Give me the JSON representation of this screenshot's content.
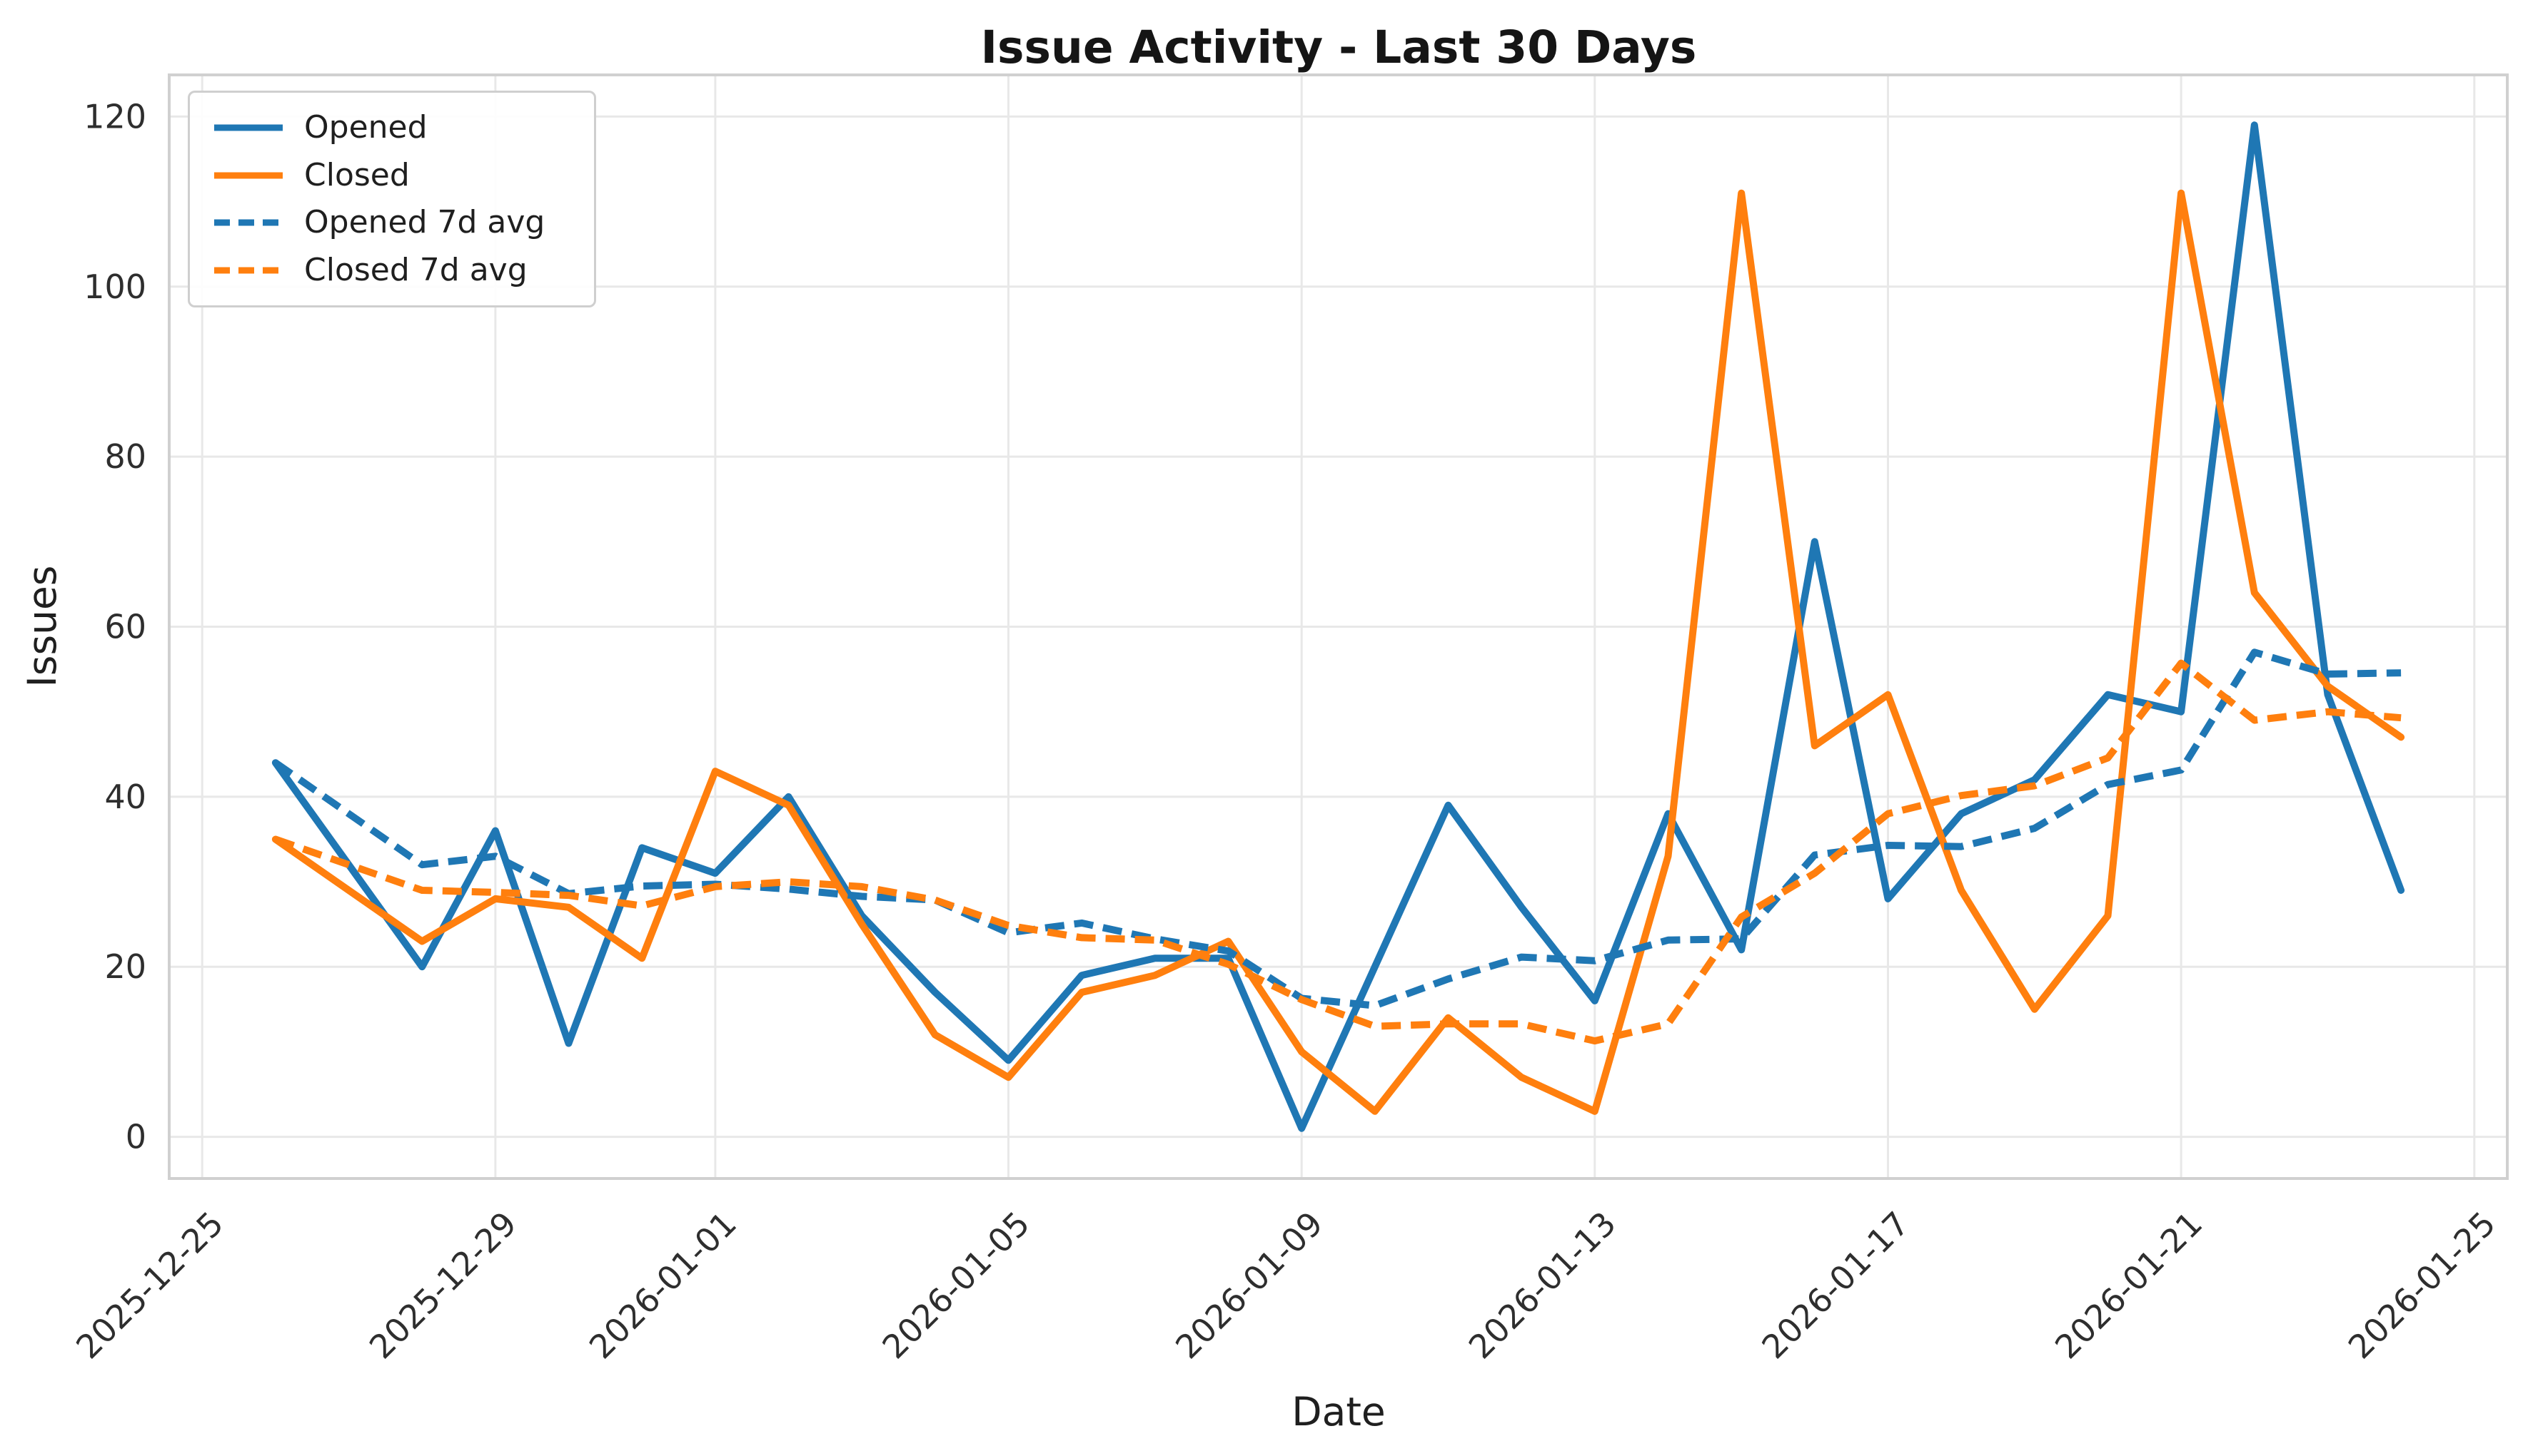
{
  "figure": {
    "background": "#ffffff",
    "grid_color": "#e8e8e8",
    "spine_color": "#d0d0d0",
    "tick_text_color": "#2e2e2e",
    "text_color": "#1f1f1f"
  },
  "chart_data": {
    "type": "line",
    "title": "Issue Activity - Last 30 Days",
    "xlabel": "Date",
    "ylabel": "Issues",
    "grid": true,
    "legend_position": "upper left",
    "ylim": [
      -4.9,
      124.9
    ],
    "xlim_days": [
      -0.45,
      31.45
    ],
    "x_epoch_date": "2025-12-25",
    "x_dates": [
      "2025-12-26",
      "2025-12-27",
      "2025-12-28",
      "2025-12-29",
      "2025-12-30",
      "2025-12-31",
      "2026-01-01",
      "2026-01-02",
      "2026-01-03",
      "2026-01-04",
      "2026-01-05",
      "2026-01-06",
      "2026-01-07",
      "2026-01-08",
      "2026-01-09",
      "2026-01-10",
      "2026-01-11",
      "2026-01-12",
      "2026-01-13",
      "2026-01-14",
      "2026-01-15",
      "2026-01-16",
      "2026-01-17",
      "2026-01-18",
      "2026-01-19",
      "2026-01-20",
      "2026-01-21",
      "2026-01-22",
      "2026-01-23",
      "2026-01-24"
    ],
    "x_tick_offsets": [
      0,
      4,
      7,
      11,
      15,
      19,
      23,
      27,
      31
    ],
    "x_tick_labels": [
      "2025-12-25",
      "2025-12-29",
      "2026-01-01",
      "2026-01-05",
      "2026-01-09",
      "2026-01-13",
      "2026-01-17",
      "2026-01-21",
      "2026-01-25"
    ],
    "y_ticks": [
      0,
      20,
      40,
      60,
      80,
      100,
      120
    ],
    "series": [
      {
        "name": "Opened",
        "color": "#1f77b4",
        "style": "solid",
        "values": [
          44,
          32,
          20,
          36,
          11,
          34,
          31,
          40,
          26,
          17,
          9,
          19,
          21,
          21,
          1,
          20,
          39,
          27,
          16,
          38,
          22,
          70,
          28,
          38,
          42,
          52,
          50,
          119,
          52,
          29
        ]
      },
      {
        "name": "Closed",
        "color": "#ff7f0e",
        "style": "solid",
        "values": [
          35,
          29,
          23,
          28,
          27,
          21,
          43,
          39,
          25,
          12,
          7,
          17,
          19,
          23,
          10,
          3,
          14,
          7,
          3,
          33,
          111,
          46,
          52,
          29,
          15,
          26,
          111,
          64,
          53,
          47
        ]
      },
      {
        "name": "Opened 7d avg",
        "color": "#1f77b4",
        "style": "dashed",
        "values": [
          44,
          38,
          32,
          33,
          28.6,
          29.5,
          29.714,
          29.143,
          28.286,
          27.857,
          24,
          25.143,
          23.286,
          21.857,
          16.286,
          15.429,
          18.571,
          21.143,
          20.714,
          23.143,
          23.286,
          33.143,
          34.286,
          34.143,
          36.286,
          41.429,
          43.143,
          57,
          54.429,
          54.571
        ]
      },
      {
        "name": "Closed 7d avg",
        "color": "#ff7f0e",
        "style": "dashed",
        "values": [
          35,
          32,
          29,
          28.75,
          28.4,
          27.167,
          29.429,
          30,
          29.429,
          27.857,
          24.857,
          23.429,
          23.143,
          20.286,
          16.143,
          13,
          13.286,
          13.286,
          11.286,
          13.286,
          25.857,
          31,
          38,
          40.143,
          41.286,
          44.571,
          55.714,
          49,
          50,
          49.286
        ]
      }
    ]
  }
}
